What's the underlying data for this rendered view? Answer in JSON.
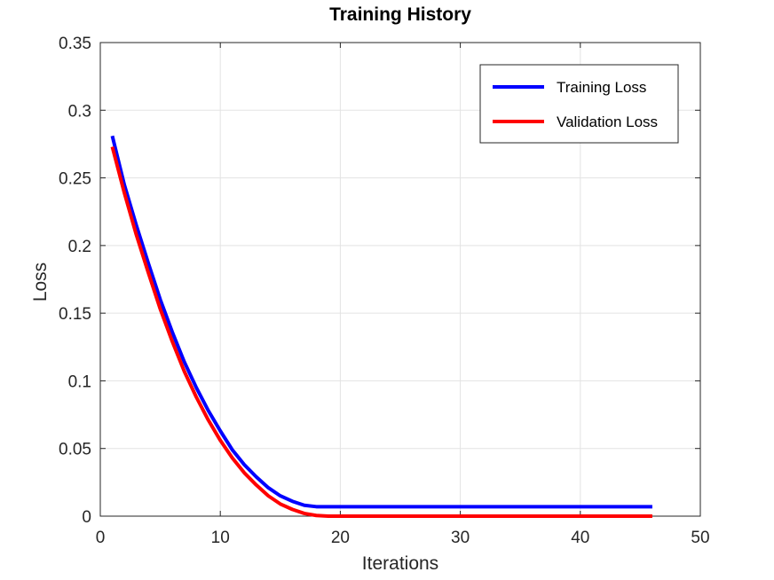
{
  "chart_data": {
    "type": "line",
    "title": "Training History",
    "xlabel": "Iterations",
    "ylabel": "Loss",
    "xlim": [
      0,
      50
    ],
    "ylim": [
      0,
      0.35
    ],
    "xticks": [
      0,
      10,
      20,
      30,
      40,
      50
    ],
    "yticks": [
      0,
      0.05,
      0.1,
      0.15,
      0.2,
      0.25,
      0.3,
      0.35
    ],
    "xtick_labels": [
      "0",
      "10",
      "20",
      "30",
      "40",
      "50"
    ],
    "ytick_labels": [
      "0",
      "0.05",
      "0.1",
      "0.15",
      "0.2",
      "0.25",
      "0.3",
      "0.35"
    ],
    "grid": true,
    "legend_position": "top-right",
    "series": [
      {
        "name": "Training Loss",
        "color": "#0000ff",
        "x": [
          1,
          2,
          3,
          4,
          5,
          6,
          7,
          8,
          9,
          10,
          11,
          12,
          13,
          14,
          15,
          16,
          17,
          18,
          19,
          20,
          21,
          22,
          23,
          24,
          25,
          26,
          27,
          28,
          29,
          30,
          31,
          32,
          33,
          34,
          35,
          36,
          37,
          38,
          39,
          40,
          41,
          42,
          43,
          44,
          45,
          46
        ],
        "values": [
          0.281,
          0.245,
          0.215,
          0.187,
          0.16,
          0.136,
          0.114,
          0.095,
          0.078,
          0.063,
          0.049,
          0.038,
          0.029,
          0.021,
          0.015,
          0.011,
          0.008,
          0.007,
          0.007,
          0.007,
          0.007,
          0.007,
          0.007,
          0.007,
          0.007,
          0.007,
          0.007,
          0.007,
          0.007,
          0.007,
          0.007,
          0.007,
          0.007,
          0.007,
          0.007,
          0.007,
          0.007,
          0.007,
          0.007,
          0.007,
          0.007,
          0.007,
          0.007,
          0.007,
          0.007,
          0.007
        ]
      },
      {
        "name": "Validation Loss",
        "color": "#ff0000",
        "x": [
          1,
          2,
          3,
          4,
          5,
          6,
          7,
          8,
          9,
          10,
          11,
          12,
          13,
          14,
          15,
          16,
          17,
          18,
          19,
          20,
          21,
          22,
          23,
          24,
          25,
          26,
          27,
          28,
          29,
          30,
          31,
          32,
          33,
          34,
          35,
          36,
          37,
          38,
          39,
          40,
          41,
          42,
          43,
          44,
          45,
          46
        ],
        "values": [
          0.273,
          0.239,
          0.208,
          0.18,
          0.153,
          0.129,
          0.107,
          0.088,
          0.071,
          0.056,
          0.043,
          0.032,
          0.023,
          0.015,
          0.009,
          0.005,
          0.002,
          0.0005,
          0,
          0,
          0,
          0,
          0,
          0,
          0,
          0,
          0,
          0,
          0,
          0,
          0,
          0,
          0,
          0,
          0,
          0,
          0,
          0,
          0,
          0,
          0,
          0,
          0,
          0,
          0,
          0
        ]
      }
    ]
  }
}
